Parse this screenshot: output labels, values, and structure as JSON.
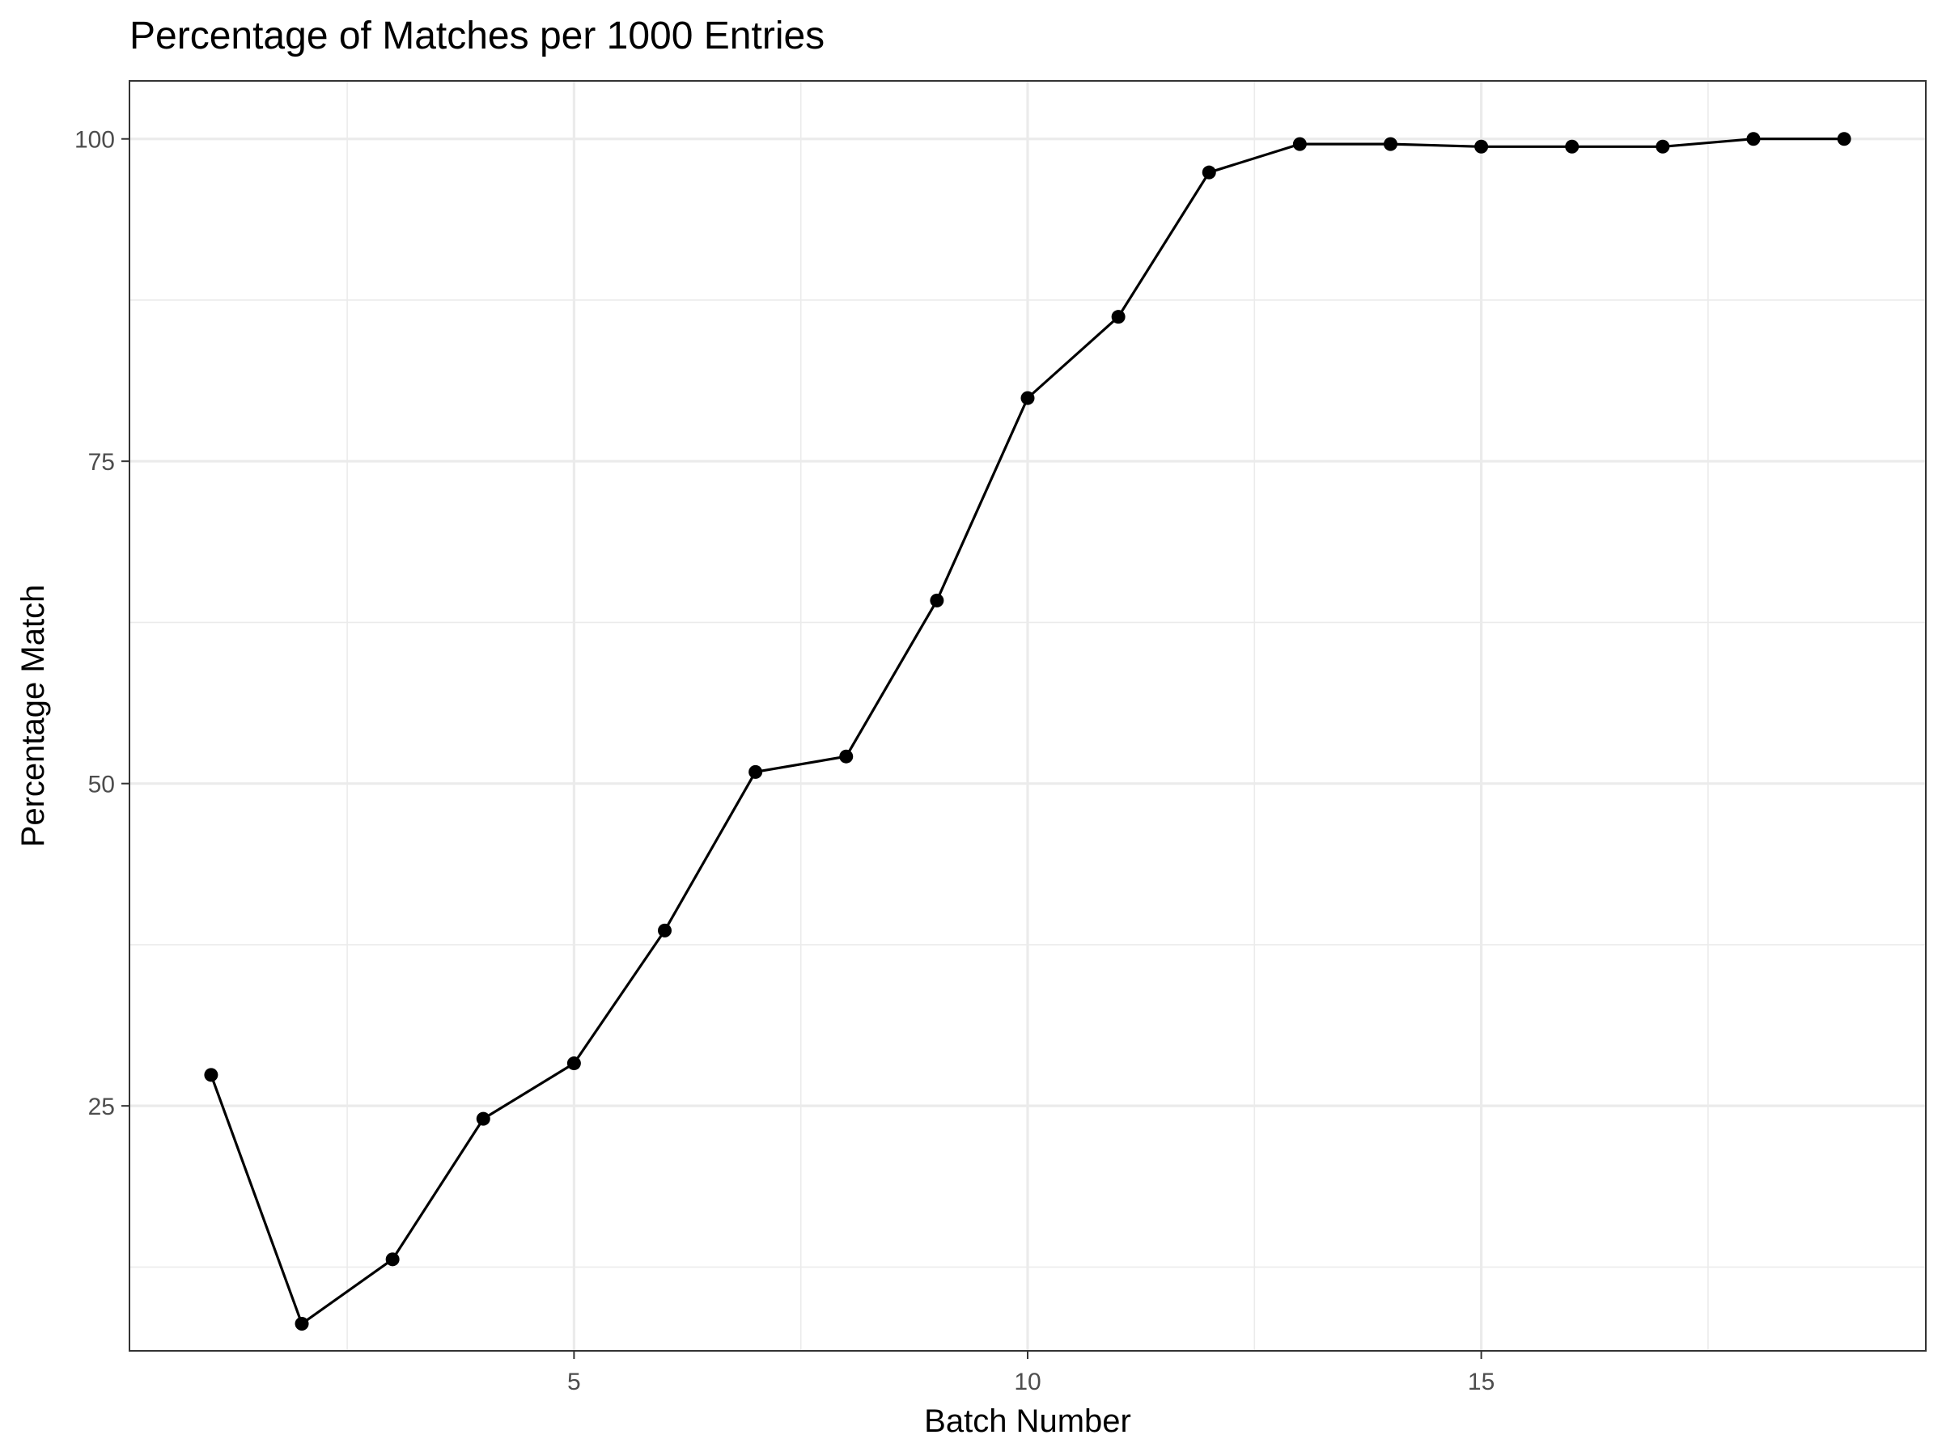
{
  "chart_data": {
    "type": "line",
    "title": "Percentage of Matches per 1000 Entries",
    "xlabel": "Batch Number",
    "ylabel": "Percentage Match",
    "xlim": [
      0.1,
      19.9
    ],
    "ylim": [
      6.0,
      104.5
    ],
    "x_ticks": [
      5,
      10,
      15
    ],
    "y_ticks": [
      25,
      50,
      75,
      100
    ],
    "x_minor": [
      2.5,
      7.5,
      12.5,
      17.5
    ],
    "y_minor": [
      12.5,
      37.5,
      62.5,
      87.5
    ],
    "grid": true,
    "legend": "none",
    "colors": {
      "line": "#000000",
      "point": "#000000",
      "grid": "#ebebeb",
      "border": "#333333"
    },
    "series": [
      {
        "x": [
          1,
          2,
          3,
          4,
          5,
          6,
          7,
          8,
          9,
          10,
          11,
          12,
          13,
          14,
          15,
          16,
          17,
          18,
          19
        ],
        "y": [
          27.4,
          8.1,
          13.1,
          24.0,
          28.3,
          38.6,
          50.9,
          52.1,
          64.2,
          79.9,
          86.2,
          97.4,
          99.6,
          99.6,
          99.4,
          99.4,
          99.4,
          100.0,
          100.0
        ]
      }
    ]
  }
}
